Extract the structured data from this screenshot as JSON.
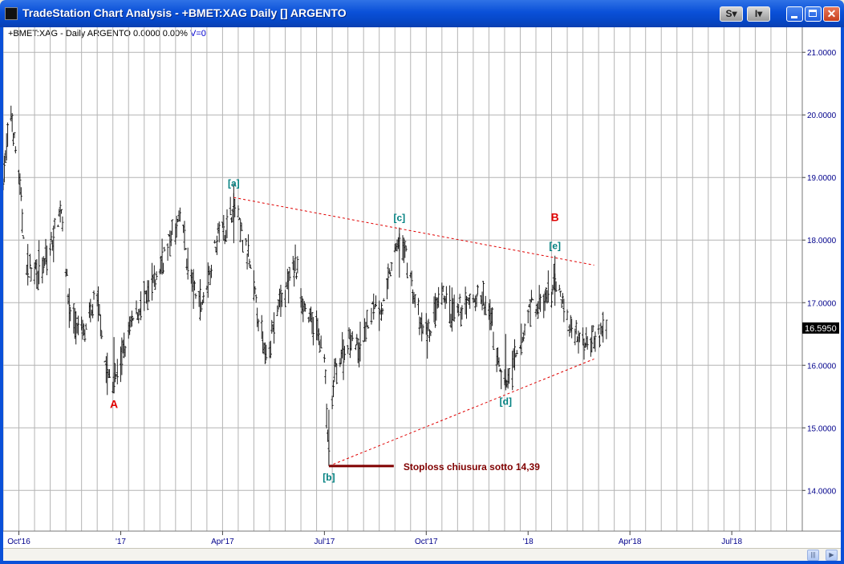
{
  "window": {
    "title": "TradeStation Chart Analysis - +BMET:XAG Daily [] ARGENTO",
    "sys_buttons": [
      "S",
      "I"
    ]
  },
  "status": {
    "symbol": "+BMET:XAG - Daily",
    "name": "ARGENTO",
    "change": "0.0000",
    "pct": "0.00%",
    "volume": "V=0"
  },
  "colors": {
    "bars": "#1a1a1a",
    "grid": "#b4b4b4",
    "axis_text": "#00008b",
    "wave_primary": "#e00000",
    "wave_sub": "#008080",
    "trendline": "#e00000",
    "stoploss": "#800000"
  },
  "chart_data": {
    "type": "ohlc",
    "title": "",
    "ylim": [
      13.35,
      21.4
    ],
    "yticks": [
      14,
      15,
      16,
      17,
      18,
      19,
      20,
      21
    ],
    "ytick_labels": [
      "14.0000",
      "15.0000",
      "16.0000",
      "17.0000",
      "18.0000",
      "19.0000",
      "20.0000",
      "21.0000"
    ],
    "xlim": [
      "2016-09-19",
      "2018-09-03"
    ],
    "xticks": [
      {
        "date": "2016-10-03",
        "label": "Oct'16"
      },
      {
        "date": "2017-01-02",
        "label": "'17"
      },
      {
        "date": "2017-04-03",
        "label": "Apr'17"
      },
      {
        "date": "2017-07-03",
        "label": "Jul'17"
      },
      {
        "date": "2017-10-02",
        "label": "Oct'17"
      },
      {
        "date": "2018-01-01",
        "label": "'18"
      },
      {
        "date": "2018-04-02",
        "label": "Apr'18"
      },
      {
        "date": "2018-07-02",
        "label": "Jul'18"
      }
    ],
    "last_price": "16.5950",
    "price_path": [
      [
        "2016-09-19",
        19.0
      ],
      [
        "2016-09-26",
        20.0
      ],
      [
        "2016-10-03",
        19.0
      ],
      [
        "2016-10-10",
        17.5
      ],
      [
        "2016-10-17",
        17.6
      ],
      [
        "2016-10-24",
        17.5
      ],
      [
        "2016-11-01",
        17.9
      ],
      [
        "2016-11-06",
        18.3
      ],
      [
        "2016-11-10",
        18.5
      ],
      [
        "2016-11-17",
        16.9
      ],
      [
        "2016-11-24",
        16.6
      ],
      [
        "2016-12-02",
        16.5
      ],
      [
        "2016-12-09",
        17.0
      ],
      [
        "2016-12-14",
        16.9
      ],
      [
        "2016-12-20",
        15.9
      ],
      [
        "2016-12-27",
        15.7
      ],
      [
        "2017-01-03",
        16.1
      ],
      [
        "2017-01-10",
        16.6
      ],
      [
        "2017-01-18",
        16.9
      ],
      [
        "2017-01-26",
        17.1
      ],
      [
        "2017-02-03",
        17.4
      ],
      [
        "2017-02-10",
        17.8
      ],
      [
        "2017-02-18",
        18.1
      ],
      [
        "2017-02-25",
        18.4
      ],
      [
        "2017-03-03",
        17.6
      ],
      [
        "2017-03-10",
        17.1
      ],
      [
        "2017-03-16",
        17.0
      ],
      [
        "2017-03-24",
        17.6
      ],
      [
        "2017-03-31",
        18.2
      ],
      [
        "2017-04-07",
        18.2
      ],
      [
        "2017-04-13",
        18.6
      ],
      [
        "2017-04-20",
        18.1
      ],
      [
        "2017-04-27",
        17.6
      ],
      [
        "2017-05-04",
        16.9
      ],
      [
        "2017-05-10",
        16.2
      ],
      [
        "2017-05-17",
        16.5
      ],
      [
        "2017-05-24",
        17.0
      ],
      [
        "2017-06-01",
        17.3
      ],
      [
        "2017-06-07",
        17.6
      ],
      [
        "2017-06-14",
        17.0
      ],
      [
        "2017-06-21",
        16.7
      ],
      [
        "2017-06-28",
        16.5
      ],
      [
        "2017-07-03",
        16.1
      ],
      [
        "2017-07-07",
        14.5
      ],
      [
        "2017-07-12",
        15.9
      ],
      [
        "2017-07-20",
        16.2
      ],
      [
        "2017-07-27",
        16.5
      ],
      [
        "2017-08-03",
        16.2
      ],
      [
        "2017-08-09",
        16.6
      ],
      [
        "2017-08-17",
        17.0
      ],
      [
        "2017-08-24",
        16.9
      ],
      [
        "2017-08-31",
        17.5
      ],
      [
        "2017-09-07",
        18.0
      ],
      [
        "2017-09-14",
        17.8
      ],
      [
        "2017-09-21",
        17.1
      ],
      [
        "2017-09-27",
        16.6
      ],
      [
        "2017-10-04",
        16.5
      ],
      [
        "2017-10-11",
        16.9
      ],
      [
        "2017-10-18",
        17.1
      ],
      [
        "2017-10-25",
        16.8
      ],
      [
        "2017-11-01",
        16.9
      ],
      [
        "2017-11-09",
        17.0
      ],
      [
        "2017-11-16",
        17.1
      ],
      [
        "2017-11-23",
        17.0
      ],
      [
        "2017-11-29",
        16.7
      ],
      [
        "2017-12-06",
        16.0
      ],
      [
        "2017-12-12",
        15.7
      ],
      [
        "2017-12-19",
        16.0
      ],
      [
        "2017-12-26",
        16.3
      ],
      [
        "2018-01-03",
        17.0
      ],
      [
        "2018-01-10",
        16.9
      ],
      [
        "2018-01-17",
        17.0
      ],
      [
        "2018-01-24",
        17.3
      ],
      [
        "2018-01-31",
        17.1
      ],
      [
        "2018-02-06",
        16.6
      ],
      [
        "2018-02-13",
        16.5
      ],
      [
        "2018-02-20",
        16.4
      ],
      [
        "2018-02-27",
        16.5
      ],
      [
        "2018-03-06",
        16.5
      ],
      [
        "2018-03-12",
        16.6
      ]
    ],
    "waves": [
      {
        "label": "A",
        "date": "2016-12-27",
        "price": 15.55,
        "level": "primary"
      },
      {
        "label": "[a]",
        "date": "2017-04-13",
        "price": 18.75,
        "level": "sub"
      },
      {
        "label": "[b]",
        "date": "2017-07-07",
        "price": 14.39,
        "level": "sub"
      },
      {
        "label": "[c]",
        "date": "2017-09-08",
        "price": 18.2,
        "level": "sub"
      },
      {
        "label": "[d]",
        "date": "2017-12-12",
        "price": 15.6,
        "level": "sub"
      },
      {
        "label": "B",
        "date": "2018-01-25",
        "price": 18.2,
        "level": "primary"
      },
      {
        "label": "[e]",
        "date": "2018-01-25",
        "price": 17.75,
        "level": "sub"
      }
    ],
    "trendlines": [
      {
        "from": [
          "2017-04-13",
          18.68
        ],
        "to": [
          "2018-03-01",
          17.6
        ]
      },
      {
        "from": [
          "2017-07-07",
          14.39
        ],
        "to": [
          "2018-03-01",
          16.1
        ]
      }
    ],
    "stoploss": {
      "level": 14.39,
      "from": "2017-07-07",
      "to": "2017-09-03",
      "label": "Stoploss  chiusura sotto 14,39"
    }
  }
}
